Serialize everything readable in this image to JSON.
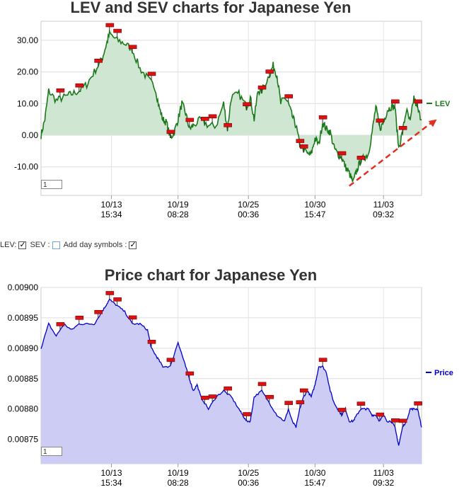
{
  "chart_data": [
    {
      "type": "line",
      "title": "LEV and SEV charts for Japanese Yen",
      "series": [
        {
          "name": "LEV",
          "color": "#1a7a1a",
          "fill": "#cfe6d2"
        }
      ],
      "x_tick_labels": [
        {
          "date": "10/13",
          "time": "15:34"
        },
        {
          "date": "10/19",
          "time": "08:28"
        },
        {
          "date": "10/25",
          "time": "00:36"
        },
        {
          "date": "10/30",
          "time": "15:47"
        },
        {
          "date": "11/03",
          "time": "09:32"
        }
      ],
      "yticks": [
        "30.00",
        "20.00",
        "10.00",
        "0.00",
        "-10.00"
      ],
      "ytick_values": [
        30,
        20,
        10,
        0,
        -10
      ],
      "ylim": [
        -19,
        36
      ],
      "x_range": [
        0,
        1
      ],
      "values": [
        [
          0.0,
          0
        ],
        [
          0.01,
          5
        ],
        [
          0.02,
          14
        ],
        [
          0.04,
          11
        ],
        [
          0.06,
          12
        ],
        [
          0.08,
          13
        ],
        [
          0.1,
          14
        ],
        [
          0.12,
          16
        ],
        [
          0.14,
          20
        ],
        [
          0.16,
          24
        ],
        [
          0.17,
          28
        ],
        [
          0.18,
          32
        ],
        [
          0.2,
          30
        ],
        [
          0.22,
          29
        ],
        [
          0.24,
          27
        ],
        [
          0.26,
          21
        ],
        [
          0.28,
          18
        ],
        [
          0.3,
          15
        ],
        [
          0.31,
          9
        ],
        [
          0.32,
          5
        ],
        [
          0.33,
          4
        ],
        [
          0.34,
          -1
        ],
        [
          0.35,
          1
        ],
        [
          0.36,
          5
        ],
        [
          0.37,
          10
        ],
        [
          0.38,
          7
        ],
        [
          0.39,
          2
        ],
        [
          0.4,
          3
        ],
        [
          0.42,
          5
        ],
        [
          0.44,
          3
        ],
        [
          0.46,
          3
        ],
        [
          0.48,
          10
        ],
        [
          0.49,
          2
        ],
        [
          0.5,
          12
        ],
        [
          0.52,
          13
        ],
        [
          0.54,
          9
        ],
        [
          0.55,
          12
        ],
        [
          0.56,
          5
        ],
        [
          0.57,
          14
        ],
        [
          0.58,
          14
        ],
        [
          0.6,
          19
        ],
        [
          0.61,
          22
        ],
        [
          0.62,
          19
        ],
        [
          0.63,
          10
        ],
        [
          0.64,
          12
        ],
        [
          0.65,
          10
        ],
        [
          0.66,
          6
        ],
        [
          0.67,
          3
        ],
        [
          0.68,
          -3
        ],
        [
          0.7,
          -6
        ],
        [
          0.71,
          -6
        ],
        [
          0.72,
          -1
        ],
        [
          0.73,
          -3
        ],
        [
          0.74,
          4
        ],
        [
          0.75,
          2
        ],
        [
          0.76,
          1
        ],
        [
          0.77,
          -4
        ],
        [
          0.78,
          -6
        ],
        [
          0.79,
          -7
        ],
        [
          0.8,
          -10
        ],
        [
          0.81,
          -12
        ],
        [
          0.82,
          -15
        ],
        [
          0.83,
          -11
        ],
        [
          0.84,
          -8
        ],
        [
          0.85,
          -7
        ],
        [
          0.86,
          -6
        ],
        [
          0.87,
          1
        ],
        [
          0.88,
          9
        ],
        [
          0.89,
          2
        ],
        [
          0.9,
          4
        ],
        [
          0.91,
          8
        ],
        [
          0.92,
          9
        ],
        [
          0.93,
          9
        ],
        [
          0.94,
          -4
        ],
        [
          0.95,
          1
        ],
        [
          0.96,
          8
        ],
        [
          0.97,
          4
        ],
        [
          0.98,
          12
        ],
        [
          0.99,
          8
        ],
        [
          1.0,
          5
        ]
      ],
      "day_markers": [
        0.05,
        0.1,
        0.15,
        0.18,
        0.2,
        0.24,
        0.29,
        0.34,
        0.39,
        0.43,
        0.45,
        0.49,
        0.54,
        0.58,
        0.6,
        0.65,
        0.68,
        0.69,
        0.74,
        0.79,
        0.84,
        0.89,
        0.93,
        0.95,
        0.99
      ],
      "trend_arrow": {
        "from": [
          0.81,
          -16
        ],
        "to": [
          1.04,
          5
        ],
        "color": "#e03020"
      },
      "legend_position": "right",
      "grid": true
    },
    {
      "type": "area",
      "title": "Price chart for Japanese Yen",
      "series": [
        {
          "name": "Price",
          "color": "#0000cc",
          "fill": "#ccccf5"
        }
      ],
      "x_tick_labels": [
        {
          "date": "10/13",
          "time": "15:34"
        },
        {
          "date": "10/19",
          "time": "08:28"
        },
        {
          "date": "10/25",
          "time": "00:36"
        },
        {
          "date": "10/30",
          "time": "15:47"
        },
        {
          "date": "11/03",
          "time": "09:32"
        }
      ],
      "yticks": [
        "0.00900",
        "0.00895",
        "0.00890",
        "0.00885",
        "0.00880",
        "0.00875"
      ],
      "ytick_values": [
        0.009,
        0.00895,
        0.0089,
        0.00885,
        0.0088,
        0.00875
      ],
      "ylim": [
        0.00871,
        0.009
      ],
      "x_range": [
        0,
        1
      ],
      "values": [
        [
          0.0,
          0.0089
        ],
        [
          0.02,
          0.00894
        ],
        [
          0.04,
          0.00892
        ],
        [
          0.06,
          0.00894
        ],
        [
          0.08,
          0.00893
        ],
        [
          0.1,
          0.00894
        ],
        [
          0.12,
          0.00894
        ],
        [
          0.14,
          0.00894
        ],
        [
          0.16,
          0.00896
        ],
        [
          0.17,
          0.00897
        ],
        [
          0.18,
          0.00898
        ],
        [
          0.2,
          0.00897
        ],
        [
          0.22,
          0.00896
        ],
        [
          0.24,
          0.00894
        ],
        [
          0.26,
          0.00894
        ],
        [
          0.28,
          0.00893
        ],
        [
          0.29,
          0.0089
        ],
        [
          0.3,
          0.00889
        ],
        [
          0.31,
          0.00888
        ],
        [
          0.32,
          0.00887
        ],
        [
          0.34,
          0.00887
        ],
        [
          0.36,
          0.00891
        ],
        [
          0.37,
          0.00889
        ],
        [
          0.38,
          0.00887
        ],
        [
          0.39,
          0.00885
        ],
        [
          0.4,
          0.00883
        ],
        [
          0.41,
          0.00884
        ],
        [
          0.42,
          0.00882
        ],
        [
          0.44,
          0.0088
        ],
        [
          0.46,
          0.00882
        ],
        [
          0.48,
          0.00883
        ],
        [
          0.5,
          0.00882
        ],
        [
          0.52,
          0.0088
        ],
        [
          0.53,
          0.00879
        ],
        [
          0.54,
          0.00878
        ],
        [
          0.55,
          0.00878
        ],
        [
          0.56,
          0.00882
        ],
        [
          0.58,
          0.00883
        ],
        [
          0.6,
          0.00881
        ],
        [
          0.62,
          0.00879
        ],
        [
          0.64,
          0.00878
        ],
        [
          0.65,
          0.0088
        ],
        [
          0.66,
          0.00878
        ],
        [
          0.67,
          0.00877
        ],
        [
          0.68,
          0.0088
        ],
        [
          0.69,
          0.00882
        ],
        [
          0.7,
          0.00883
        ],
        [
          0.71,
          0.00882
        ],
        [
          0.72,
          0.00884
        ],
        [
          0.73,
          0.00887
        ],
        [
          0.74,
          0.00887
        ],
        [
          0.75,
          0.00886
        ],
        [
          0.76,
          0.00883
        ],
        [
          0.77,
          0.00881
        ],
        [
          0.78,
          0.0088
        ],
        [
          0.79,
          0.00879
        ],
        [
          0.8,
          0.0088
        ],
        [
          0.81,
          0.00878
        ],
        [
          0.82,
          0.00878
        ],
        [
          0.83,
          0.00879
        ],
        [
          0.84,
          0.0088
        ],
        [
          0.85,
          0.0088
        ],
        [
          0.86,
          0.0088
        ],
        [
          0.87,
          0.00879
        ],
        [
          0.88,
          0.00879
        ],
        [
          0.89,
          0.00878
        ],
        [
          0.9,
          0.00879
        ],
        [
          0.91,
          0.00878
        ],
        [
          0.92,
          0.00878
        ],
        [
          0.93,
          0.00877
        ],
        [
          0.94,
          0.00874
        ],
        [
          0.95,
          0.00877
        ],
        [
          0.96,
          0.00878
        ],
        [
          0.97,
          0.0088
        ],
        [
          0.98,
          0.0088
        ],
        [
          0.99,
          0.0088
        ],
        [
          1.0,
          0.00877
        ]
      ],
      "day_markers": [
        0.05,
        0.1,
        0.15,
        0.18,
        0.2,
        0.24,
        0.29,
        0.34,
        0.39,
        0.43,
        0.45,
        0.49,
        0.54,
        0.58,
        0.6,
        0.65,
        0.68,
        0.69,
        0.74,
        0.79,
        0.84,
        0.89,
        0.93,
        0.95,
        0.99
      ],
      "legend_position": "right",
      "grid": true
    }
  ],
  "controls": {
    "lev_label": "LEV:",
    "lev_checked": true,
    "sev_label": "SEV :",
    "sev_checked": false,
    "day_symbols_label": "Add day symbols :",
    "day_symbols_checked": true
  },
  "zoom": {
    "lev_value": "1",
    "price_value": "1"
  }
}
